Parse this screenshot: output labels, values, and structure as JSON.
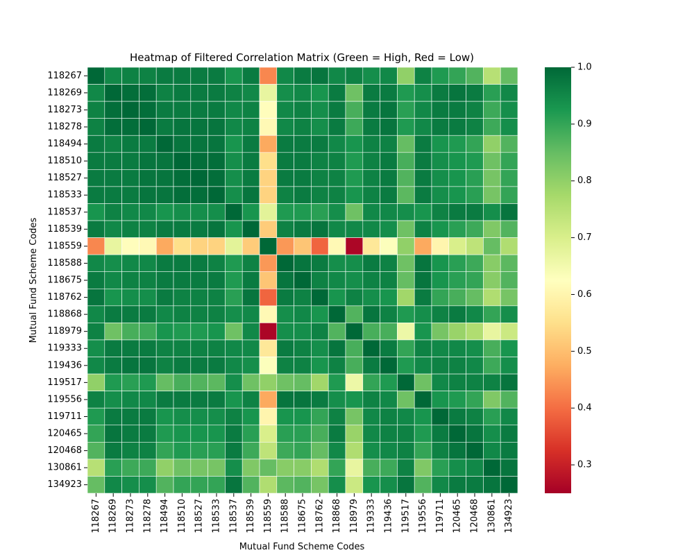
{
  "chart_data": {
    "type": "heatmap",
    "title": "Heatmap of Filtered Correlation Matrix (Green = High, Red = Low)",
    "xlabel": "Mutual Fund Scheme Codes",
    "ylabel": "Mutual Fund Scheme Codes",
    "labels": [
      "118267",
      "118269",
      "118273",
      "118278",
      "118494",
      "118510",
      "118527",
      "118533",
      "118537",
      "118539",
      "118559",
      "118588",
      "118675",
      "118762",
      "118868",
      "118979",
      "119333",
      "119436",
      "119517",
      "119556",
      "119711",
      "120465",
      "120468",
      "130861",
      "134923"
    ],
    "vmin": 0.25,
    "vmax": 1.0,
    "colorbar_ticks": [
      0.3,
      0.4,
      0.5,
      0.6,
      0.7,
      0.8,
      0.9,
      1.0
    ],
    "colorbar_tick_labels": [
      "0.3",
      "0.4",
      "0.5",
      "0.6",
      "0.7",
      "0.8",
      "0.9",
      "1.0"
    ],
    "colormap": "RdYlGn",
    "matrix": [
      [
        1.0,
        0.95,
        0.96,
        0.96,
        0.97,
        0.97,
        0.97,
        0.97,
        0.93,
        0.97,
        0.43,
        0.95,
        0.97,
        0.98,
        0.95,
        0.96,
        0.94,
        0.95,
        0.8,
        0.96,
        0.92,
        0.9,
        0.87,
        0.75,
        0.85
      ],
      [
        0.95,
        1.0,
        0.99,
        0.99,
        0.96,
        0.97,
        0.97,
        0.97,
        0.96,
        0.95,
        0.67,
        0.94,
        0.95,
        0.93,
        0.97,
        0.84,
        0.97,
        0.97,
        0.92,
        0.94,
        0.97,
        0.98,
        0.97,
        0.91,
        0.95
      ],
      [
        0.96,
        0.99,
        1.0,
        0.99,
        0.97,
        0.97,
        0.97,
        0.97,
        0.95,
        0.96,
        0.62,
        0.95,
        0.96,
        0.94,
        0.97,
        0.88,
        0.97,
        0.98,
        0.91,
        0.95,
        0.97,
        0.97,
        0.96,
        0.89,
        0.94
      ],
      [
        0.96,
        0.99,
        0.99,
        1.0,
        0.97,
        0.98,
        0.98,
        0.98,
        0.95,
        0.96,
        0.61,
        0.95,
        0.96,
        0.94,
        0.97,
        0.89,
        0.97,
        0.98,
        0.92,
        0.95,
        0.97,
        0.97,
        0.96,
        0.89,
        0.94
      ],
      [
        0.97,
        0.96,
        0.97,
        0.97,
        1.0,
        0.98,
        0.98,
        0.98,
        0.93,
        0.97,
        0.47,
        0.97,
        0.97,
        0.97,
        0.95,
        0.93,
        0.96,
        0.96,
        0.85,
        0.97,
        0.93,
        0.92,
        0.9,
        0.8,
        0.87
      ],
      [
        0.97,
        0.97,
        0.97,
        0.98,
        0.98,
        1.0,
        0.99,
        0.99,
        0.94,
        0.97,
        0.55,
        0.97,
        0.97,
        0.96,
        0.96,
        0.92,
        0.96,
        0.97,
        0.88,
        0.97,
        0.94,
        0.93,
        0.92,
        0.84,
        0.9
      ],
      [
        0.97,
        0.97,
        0.97,
        0.98,
        0.98,
        0.99,
        1.0,
        0.99,
        0.94,
        0.97,
        0.53,
        0.97,
        0.97,
        0.96,
        0.96,
        0.92,
        0.96,
        0.97,
        0.87,
        0.97,
        0.94,
        0.93,
        0.91,
        0.83,
        0.9
      ],
      [
        0.97,
        0.97,
        0.97,
        0.98,
        0.98,
        0.99,
        0.99,
        1.0,
        0.94,
        0.98,
        0.53,
        0.96,
        0.97,
        0.96,
        0.96,
        0.93,
        0.96,
        0.97,
        0.86,
        0.97,
        0.94,
        0.93,
        0.91,
        0.83,
        0.9
      ],
      [
        0.93,
        0.96,
        0.95,
        0.95,
        0.93,
        0.94,
        0.94,
        0.94,
        1.0,
        0.93,
        0.68,
        0.92,
        0.92,
        0.91,
        0.94,
        0.84,
        0.95,
        0.95,
        0.94,
        0.93,
        0.96,
        0.97,
        0.97,
        0.94,
        0.98
      ],
      [
        0.97,
        0.95,
        0.96,
        0.96,
        0.97,
        0.97,
        0.97,
        0.98,
        0.93,
        1.0,
        0.52,
        0.96,
        0.97,
        0.98,
        0.95,
        0.95,
        0.95,
        0.94,
        0.84,
        0.96,
        0.93,
        0.91,
        0.89,
        0.82,
        0.87
      ],
      [
        0.43,
        0.67,
        0.62,
        0.61,
        0.47,
        0.55,
        0.53,
        0.53,
        0.68,
        0.52,
        1.0,
        0.45,
        0.51,
        0.39,
        0.61,
        0.26,
        0.57,
        0.63,
        0.8,
        0.47,
        0.6,
        0.7,
        0.74,
        0.85,
        0.76
      ],
      [
        0.95,
        0.94,
        0.95,
        0.95,
        0.97,
        0.97,
        0.97,
        0.96,
        0.92,
        0.96,
        0.45,
        1.0,
        0.98,
        0.97,
        0.94,
        0.94,
        0.97,
        0.96,
        0.84,
        0.98,
        0.93,
        0.91,
        0.89,
        0.81,
        0.86
      ],
      [
        0.97,
        0.95,
        0.96,
        0.96,
        0.97,
        0.97,
        0.97,
        0.97,
        0.92,
        0.97,
        0.51,
        0.98,
        1.0,
        0.96,
        0.95,
        0.94,
        0.96,
        0.96,
        0.85,
        0.98,
        0.93,
        0.91,
        0.9,
        0.81,
        0.87
      ],
      [
        0.98,
        0.93,
        0.94,
        0.94,
        0.97,
        0.96,
        0.96,
        0.96,
        0.91,
        0.98,
        0.39,
        0.97,
        0.96,
        1.0,
        0.93,
        0.96,
        0.94,
        0.93,
        0.78,
        0.97,
        0.9,
        0.88,
        0.85,
        0.76,
        0.83
      ],
      [
        0.95,
        0.97,
        0.97,
        0.97,
        0.95,
        0.96,
        0.96,
        0.96,
        0.94,
        0.95,
        0.61,
        0.94,
        0.95,
        0.93,
        1.0,
        0.87,
        0.98,
        0.96,
        0.92,
        0.94,
        0.96,
        0.97,
        0.95,
        0.9,
        0.94
      ],
      [
        0.96,
        0.84,
        0.88,
        0.89,
        0.93,
        0.92,
        0.92,
        0.93,
        0.84,
        0.95,
        0.26,
        0.94,
        0.94,
        0.96,
        0.87,
        1.0,
        0.88,
        0.88,
        0.66,
        0.93,
        0.83,
        0.79,
        0.76,
        0.67,
        0.72
      ],
      [
        0.94,
        0.97,
        0.97,
        0.97,
        0.96,
        0.96,
        0.96,
        0.96,
        0.95,
        0.95,
        0.57,
        0.97,
        0.96,
        0.94,
        0.98,
        0.88,
        1.0,
        0.97,
        0.9,
        0.96,
        0.95,
        0.95,
        0.94,
        0.88,
        0.93
      ],
      [
        0.95,
        0.97,
        0.98,
        0.98,
        0.96,
        0.97,
        0.97,
        0.97,
        0.95,
        0.94,
        0.63,
        0.96,
        0.96,
        0.93,
        0.96,
        0.88,
        0.97,
        1.0,
        0.92,
        0.95,
        0.96,
        0.96,
        0.95,
        0.89,
        0.94
      ],
      [
        0.8,
        0.92,
        0.91,
        0.92,
        0.85,
        0.88,
        0.87,
        0.86,
        0.94,
        0.84,
        0.8,
        0.84,
        0.85,
        0.78,
        0.92,
        0.66,
        0.9,
        0.92,
        1.0,
        0.84,
        0.95,
        0.96,
        0.96,
        0.96,
        0.98
      ],
      [
        0.96,
        0.94,
        0.95,
        0.95,
        0.97,
        0.97,
        0.97,
        0.97,
        0.93,
        0.96,
        0.47,
        0.98,
        0.98,
        0.97,
        0.94,
        0.93,
        0.96,
        0.95,
        0.84,
        1.0,
        0.93,
        0.92,
        0.9,
        0.82,
        0.87
      ],
      [
        0.92,
        0.97,
        0.97,
        0.97,
        0.93,
        0.94,
        0.94,
        0.94,
        0.96,
        0.93,
        0.6,
        0.93,
        0.93,
        0.9,
        0.96,
        0.83,
        0.95,
        0.96,
        0.95,
        0.93,
        1.0,
        0.97,
        0.96,
        0.91,
        0.95
      ],
      [
        0.9,
        0.98,
        0.97,
        0.97,
        0.92,
        0.93,
        0.93,
        0.93,
        0.97,
        0.91,
        0.7,
        0.91,
        0.91,
        0.88,
        0.97,
        0.79,
        0.95,
        0.96,
        0.96,
        0.92,
        0.97,
        1.0,
        0.98,
        0.94,
        0.97
      ],
      [
        0.87,
        0.97,
        0.96,
        0.96,
        0.9,
        0.92,
        0.91,
        0.91,
        0.97,
        0.89,
        0.74,
        0.89,
        0.9,
        0.85,
        0.95,
        0.76,
        0.94,
        0.95,
        0.96,
        0.9,
        0.96,
        0.98,
        1.0,
        0.95,
        0.97
      ],
      [
        0.75,
        0.91,
        0.89,
        0.89,
        0.8,
        0.84,
        0.83,
        0.83,
        0.94,
        0.82,
        0.85,
        0.81,
        0.81,
        0.76,
        0.9,
        0.67,
        0.88,
        0.89,
        0.96,
        0.82,
        0.91,
        0.94,
        0.95,
        1.0,
        0.98
      ],
      [
        0.85,
        0.95,
        0.94,
        0.94,
        0.87,
        0.9,
        0.9,
        0.9,
        0.98,
        0.87,
        0.76,
        0.86,
        0.87,
        0.83,
        0.94,
        0.72,
        0.93,
        0.94,
        0.98,
        0.87,
        0.95,
        0.97,
        0.97,
        0.98,
        1.0
      ]
    ]
  }
}
